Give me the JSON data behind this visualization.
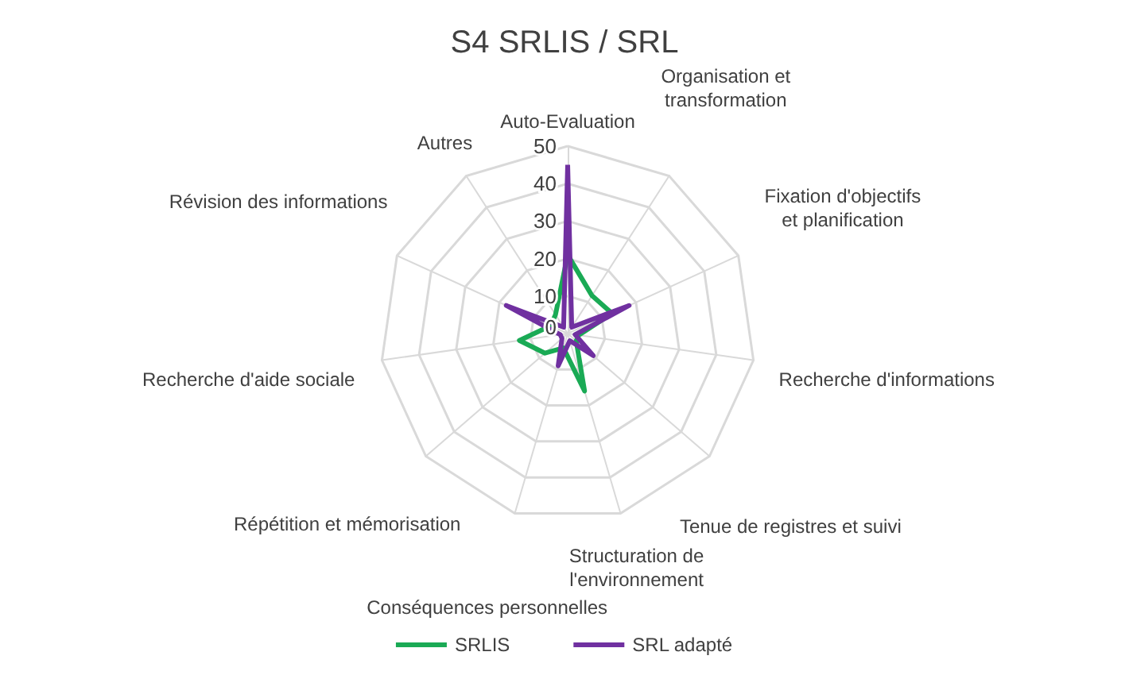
{
  "chart_data": {
    "type": "radar",
    "title": "S4 SRLIS / SRL",
    "categories": [
      "Auto-Evaluation",
      "Organisation et transformation",
      "Fixation d'objectifs et planification",
      "Recherche d'informations",
      "Tenue de registres et suivi",
      "Structuration de l'environnement",
      "Conséquences personnelles",
      "Répétition et mémorisation",
      "Recherche d'aide sociale",
      "Révision des informations",
      "Autres"
    ],
    "series": [
      {
        "name": "SRLIS",
        "color": "#1aaa55",
        "values": [
          21,
          12,
          13,
          3,
          3,
          16,
          4,
          8,
          13,
          5,
          6
        ]
      },
      {
        "name": "SRL adapté",
        "color": "#7030a0",
        "values": [
          45,
          2,
          18,
          2,
          9,
          2,
          9,
          2,
          2,
          18,
          2
        ]
      }
    ],
    "ylim": [
      0,
      50
    ],
    "yticks": [
      0,
      10,
      20,
      30,
      40,
      50
    ],
    "legend": "bottom",
    "marker": "none"
  }
}
